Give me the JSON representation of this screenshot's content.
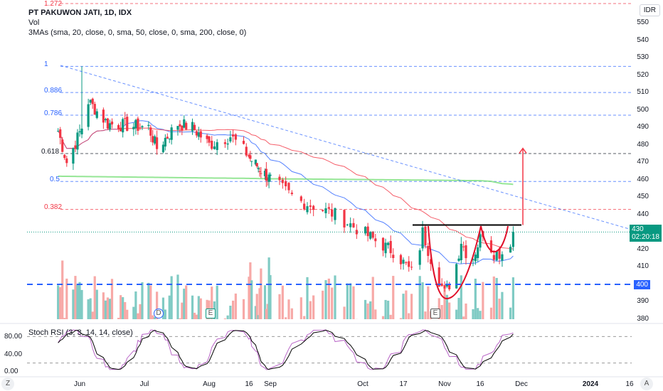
{
  "header": {
    "title": "PT PAKUWON JATI, 1D, IDX",
    "vol": "Vol",
    "ma": "3MAs (sma, 20, close, 0, sma, 50, close, 0, sma, 200, close, 0)",
    "currency": "IDR"
  },
  "price_label": {
    "price": "430",
    "countdown": "02:20:18",
    "color": "#089981"
  },
  "support_label": {
    "price": "400",
    "color": "#2962ff"
  },
  "stoch": {
    "title": "Stoch RSI (3, 3, 14, 14, close)",
    "ticks": [
      "80.00",
      "40.00",
      "0.00"
    ]
  },
  "fib_levels": [
    {
      "label": "1.272",
      "value": 561,
      "color": "#f23645"
    },
    {
      "label": "1",
      "value": 525,
      "color": "#2962ff"
    },
    {
      "label": "0.886",
      "value": 510,
      "color": "#2962ff"
    },
    {
      "label": "0.786",
      "value": 497,
      "color": "#2962ff"
    },
    {
      "label": "0.618",
      "value": 475,
      "color": "#131722"
    },
    {
      "label": "0.5",
      "value": 459,
      "color": "#2962ff"
    },
    {
      "label": "0.382",
      "value": 443,
      "color": "#f23645"
    }
  ],
  "y_ticks": [
    "550",
    "540",
    "530",
    "520",
    "510",
    "500",
    "490",
    "480",
    "470",
    "460",
    "450",
    "440",
    "420",
    "410",
    "390",
    "380"
  ],
  "x_ticks": [
    "Jun",
    "Jul",
    "Aug",
    "16",
    "Sep",
    "Oct",
    "17",
    "Nov",
    "16",
    "Dec",
    "2024",
    "16"
  ],
  "buttons": {
    "goto": "Z",
    "auto": "A",
    "events": [
      "D",
      "E",
      "E"
    ]
  },
  "chart_data": {
    "type": "candlestick",
    "ylim": [
      380,
      550
    ],
    "keypoints": [
      [
        "2023-05-22",
        488
      ],
      [
        "2023-05-26",
        470
      ],
      [
        "2023-05-29",
        478
      ],
      [
        "2023-06-02",
        490
      ],
      [
        "2023-06-05",
        505
      ],
      [
        "2023-06-14",
        492
      ],
      [
        "2023-07-03",
        490
      ],
      [
        "2023-07-07",
        478
      ],
      [
        "2023-07-17",
        492
      ],
      [
        "2023-07-24",
        490
      ],
      [
        "2023-08-01",
        480
      ],
      [
        "2023-08-09",
        485
      ],
      [
        "2023-08-17",
        472
      ],
      [
        "2023-09-01",
        460
      ],
      [
        "2023-09-10",
        448
      ],
      [
        "2023-09-15",
        445
      ],
      [
        "2023-09-22",
        440
      ],
      [
        "2023-09-29",
        432
      ],
      [
        "2023-10-06",
        425
      ],
      [
        "2023-10-14",
        418
      ],
      [
        "2023-10-21",
        405
      ],
      [
        "2023-10-24",
        430
      ],
      [
        "2023-10-28",
        410
      ],
      [
        "2023-11-01",
        395
      ],
      [
        "2023-11-05",
        405
      ],
      [
        "2023-11-08",
        425
      ],
      [
        "2023-11-12",
        412
      ],
      [
        "2023-11-17",
        430
      ],
      [
        "2023-11-21",
        418
      ],
      [
        "2023-11-25",
        418
      ],
      [
        "2023-11-28",
        428
      ]
    ],
    "annotations": {
      "resistance": 434,
      "target": 478,
      "support": 400
    }
  }
}
